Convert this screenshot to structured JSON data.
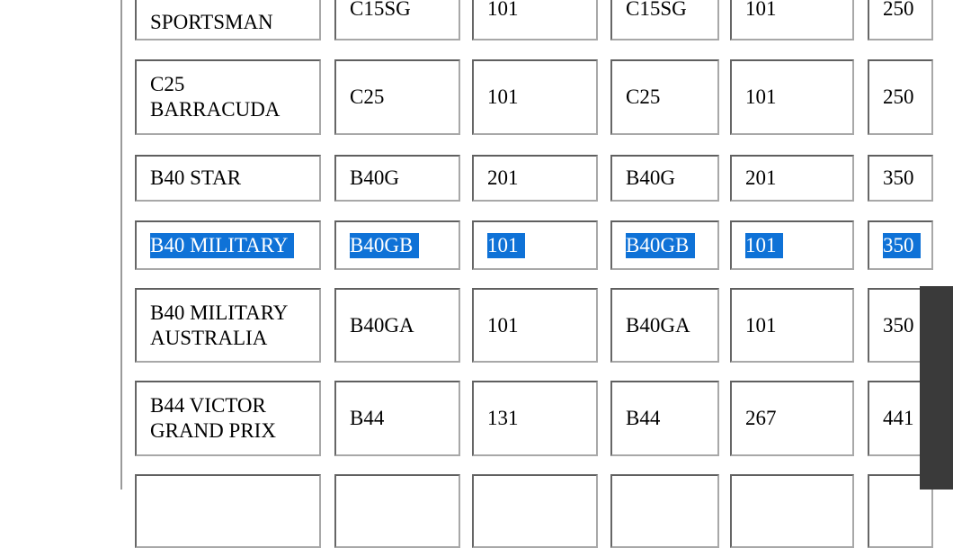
{
  "colors": {
    "selection_bg": "#0f72d7",
    "selection_text": "#ffffff",
    "overlay_panel": "#3a3a3a",
    "box_border_dark": "#5f5f5f",
    "box_border_light": "#a8a8a8",
    "rule_gray": "#9a9a9a"
  },
  "table": {
    "rows": [
      {
        "cells": [
          "SPORTSMAN",
          "C15SG",
          "101",
          "C15SG",
          "101",
          "250"
        ],
        "selected": false
      },
      {
        "cells": [
          "C25\nBARRACUDA",
          "C25",
          "101",
          "C25",
          "101",
          "250"
        ],
        "selected": false
      },
      {
        "cells": [
          "B40 STAR",
          "B40G",
          "201",
          "B40G",
          "201",
          "350"
        ],
        "selected": false
      },
      {
        "cells": [
          "B40 MILITARY",
          "B40GB",
          "101",
          "B40GB",
          "101",
          "350"
        ],
        "selected": true
      },
      {
        "cells": [
          "B40 MILITARY\nAUSTRALIA",
          "B40GA",
          "101",
          "B40GA",
          "101",
          "350"
        ],
        "selected": false
      },
      {
        "cells": [
          "B44 VICTOR\nGRAND PRIX",
          "B44",
          "131",
          "B44",
          "267",
          "441"
        ],
        "selected": false
      },
      {
        "cells": [
          "",
          "",
          "",
          "",
          "",
          ""
        ],
        "selected": false
      }
    ]
  }
}
